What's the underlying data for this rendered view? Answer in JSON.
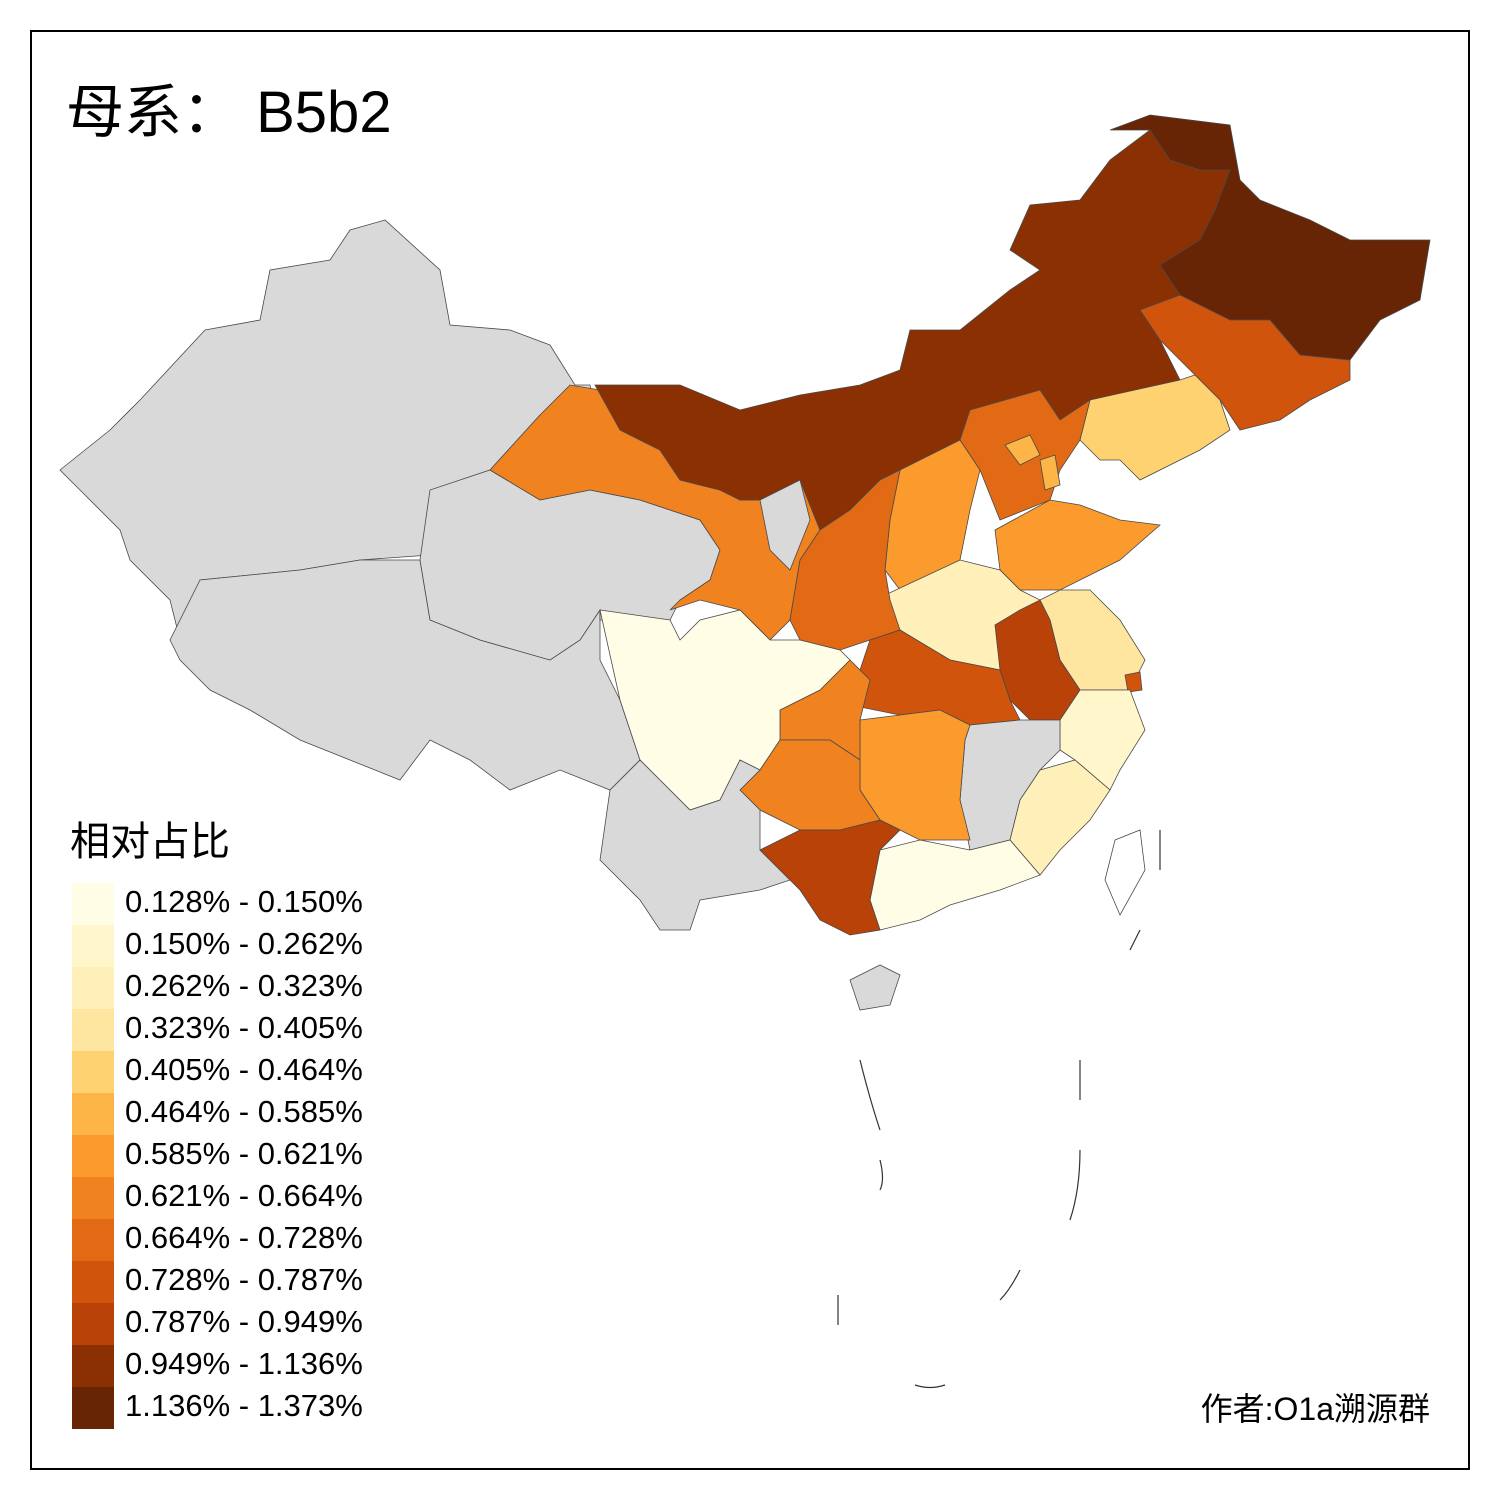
{
  "title": "母系： B5b2",
  "legend": {
    "title": "相对占比",
    "items": [
      {
        "label": "0.128% - 0.150%",
        "color": "#fffde6"
      },
      {
        "label": "0.150% - 0.262%",
        "color": "#fff6cc"
      },
      {
        "label": "0.262% - 0.323%",
        "color": "#ffefb8"
      },
      {
        "label": "0.323% - 0.405%",
        "color": "#fee5a0"
      },
      {
        "label": "0.405% - 0.464%",
        "color": "#fed270"
      },
      {
        "label": "0.464% - 0.585%",
        "color": "#fdb547"
      },
      {
        "label": "0.585% - 0.621%",
        "color": "#fb9a2d"
      },
      {
        "label": "0.621% - 0.664%",
        "color": "#f0821f"
      },
      {
        "label": "0.664% - 0.728%",
        "color": "#e36a14"
      },
      {
        "label": "0.728% - 0.787%",
        "color": "#d0540b"
      },
      {
        "label": "0.787% - 0.949%",
        "color": "#b84207"
      },
      {
        "label": "0.949% - 1.136%",
        "color": "#8b3003"
      },
      {
        "label": "1.136% - 1.373%",
        "color": "#672506"
      }
    ]
  },
  "credit": "作者:O1a溯源群"
}
